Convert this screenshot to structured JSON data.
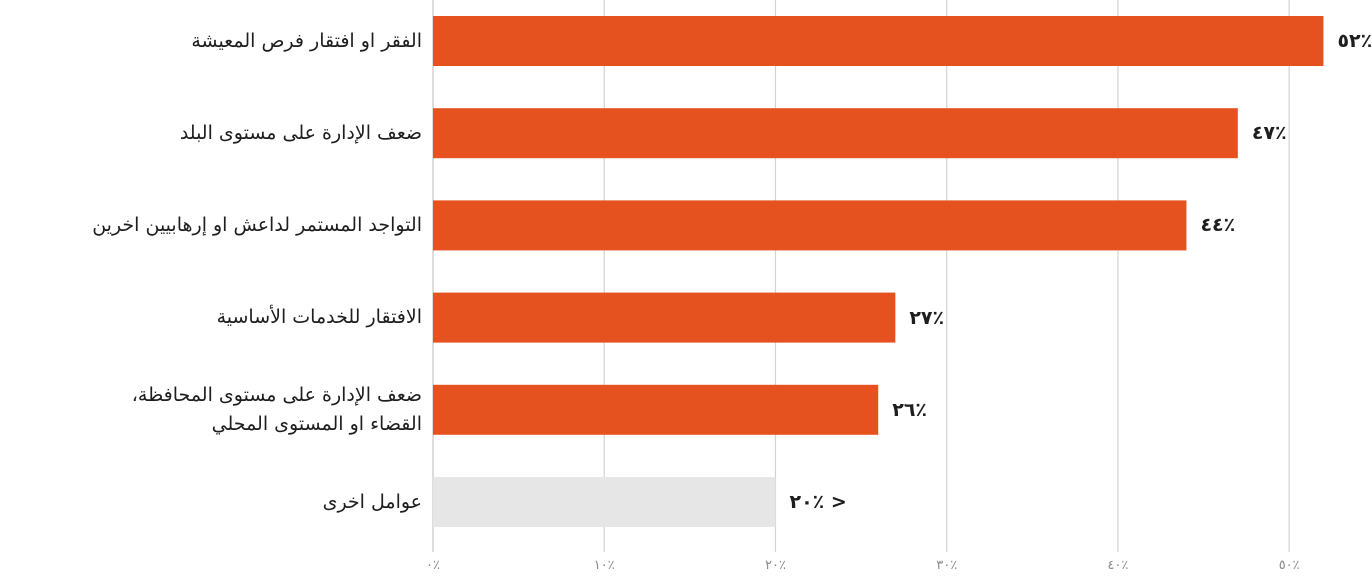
{
  "chart_data": {
    "type": "bar",
    "orientation": "horizontal",
    "categories": [
      "الفقر او افتقار فرص المعيشة",
      "ضعف الإدارة على مستوى البلد",
      "التواجد المستمر لداعش او إرهابيين اخرين",
      "الافتقار للخدمات الأساسية",
      "ضعف الإدارة على مستوى المحافظة، القضاء او المستوى المحلي",
      "عوامل اخرى"
    ],
    "category_lines": [
      [
        "الفقر او افتقار فرص المعيشة"
      ],
      [
        "ضعف الإدارة على مستوى البلد"
      ],
      [
        "التواجد المستمر لداعش او إرهابيين اخرين"
      ],
      [
        "الافتقار للخدمات الأساسية"
      ],
      [
        "ضعف الإدارة على مستوى المحافظة،",
        "القضاء او المستوى المحلي"
      ],
      [
        "عوامل اخرى"
      ]
    ],
    "values": [
      52,
      47,
      44,
      27,
      26,
      20
    ],
    "value_labels": [
      "٪٥٢",
      "٪٤٧",
      "٪٤٤",
      "٪٢٧",
      "٪٢٦",
      "< ٪٢٠"
    ],
    "bar_colors": [
      "#e5511f",
      "#e5511f",
      "#e5511f",
      "#e5511f",
      "#e5511f",
      "#e6e6e6"
    ],
    "xlim": [
      0,
      52.5
    ],
    "xticks": [
      0,
      10,
      20,
      30,
      40,
      50
    ],
    "xtick_labels": [
      "٪٠",
      "٪١٠",
      "٪٢٠",
      "٪٣٠",
      "٪٤٠",
      "٪٥٠"
    ],
    "grid": true,
    "gridline_color": "#d2d2d2",
    "title": "",
    "xlabel": "",
    "ylabel": ""
  }
}
